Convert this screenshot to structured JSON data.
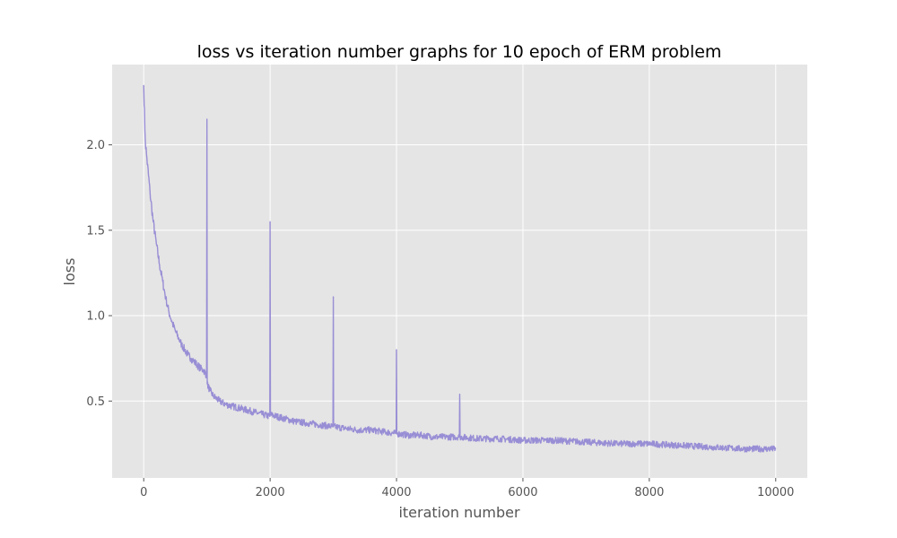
{
  "chart_data": {
    "type": "line",
    "title": "loss vs iteration number graphs for 10 epoch of ERM problem",
    "xlabel": "iteration number",
    "ylabel": "loss",
    "xlim": [
      -500,
      10500
    ],
    "ylim": [
      0.05,
      2.47
    ],
    "xticks": [
      0,
      2000,
      4000,
      6000,
      8000,
      10000
    ],
    "xtick_labels": [
      "0",
      "2000",
      "4000",
      "6000",
      "8000",
      "10000"
    ],
    "yticks": [
      0.5,
      1.0,
      1.5,
      2.0
    ],
    "ytick_labels": [
      "0.5",
      "1.0",
      "1.5",
      "2.0"
    ],
    "grid": true,
    "style": "ggplot",
    "colors": {
      "line": "#988ED5",
      "plot_background": "#E5E5E5",
      "grid": "#FFFFFF",
      "figure_background": "#FFFFFF"
    },
    "series": [
      {
        "name": "",
        "x": [
          0,
          25,
          50,
          100,
          150,
          200,
          250,
          300,
          350,
          400,
          450,
          500,
          550,
          600,
          650,
          700,
          750,
          800,
          850,
          900,
          950,
          995,
          1000,
          1005,
          1050,
          1100,
          1200,
          1300,
          1400,
          1500,
          1600,
          1700,
          1800,
          1900,
          1995,
          2000,
          2005,
          2200,
          2400,
          2600,
          2800,
          2995,
          3000,
          3005,
          3200,
          3400,
          3600,
          3800,
          3995,
          4000,
          4005,
          4200,
          4400,
          4600,
          4800,
          4995,
          5000,
          5005,
          5300,
          5600,
          6000,
          6500,
          7000,
          7500,
          8000,
          8500,
          9000,
          9500,
          10000
        ],
        "y": [
          2.35,
          2.02,
          1.92,
          1.72,
          1.55,
          1.42,
          1.3,
          1.2,
          1.1,
          1.02,
          0.96,
          0.91,
          0.87,
          0.83,
          0.8,
          0.77,
          0.75,
          0.73,
          0.71,
          0.69,
          0.68,
          0.65,
          2.15,
          0.6,
          0.56,
          0.53,
          0.5,
          0.48,
          0.47,
          0.46,
          0.45,
          0.44,
          0.43,
          0.42,
          0.41,
          1.55,
          0.42,
          0.4,
          0.38,
          0.37,
          0.36,
          0.35,
          1.11,
          0.35,
          0.34,
          0.33,
          0.33,
          0.32,
          0.31,
          0.8,
          0.31,
          0.3,
          0.3,
          0.29,
          0.29,
          0.29,
          0.54,
          0.29,
          0.28,
          0.28,
          0.27,
          0.27,
          0.26,
          0.25,
          0.25,
          0.24,
          0.23,
          0.22,
          0.22
        ],
        "noise_band": 0.055
      }
    ]
  }
}
